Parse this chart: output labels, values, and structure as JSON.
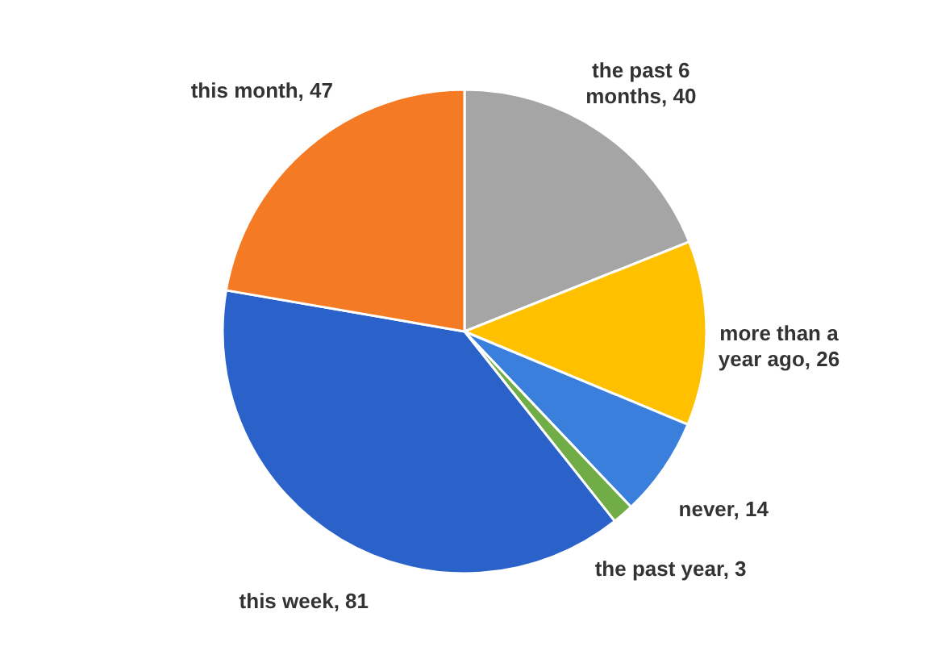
{
  "chart_data": {
    "type": "pie",
    "categories": [
      "the past 6 months, 40",
      "more than a year ago, 26",
      "never, 14",
      "the past year, 3",
      "this week, 81",
      "this month, 47"
    ],
    "values": [
      40,
      26,
      14,
      3,
      81,
      47
    ],
    "colors": [
      "#a5a5a5",
      "#ffc000",
      "#3a7fdb",
      "#70ad47",
      "#2a62c9",
      "#f47a24"
    ]
  }
}
